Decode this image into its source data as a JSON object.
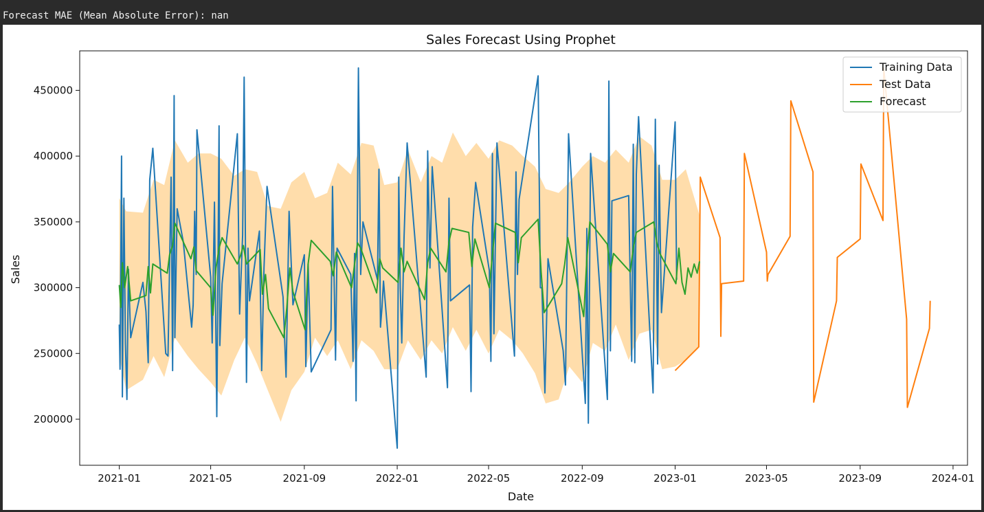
{
  "console": {
    "text": "Forecast MAE (Mean Absolute Error): nan"
  },
  "colors": {
    "training": "#1f77b4",
    "test": "#ff7f0e",
    "forecast": "#2ca02c",
    "interval": "#ffd28f"
  },
  "chart_data": {
    "type": "line",
    "title": "Sales Forecast Using Prophet",
    "xlabel": "Date",
    "ylabel": "Sales",
    "xlim": [
      "2020-11-10",
      "2024-01-20"
    ],
    "ylim": [
      165000,
      480000
    ],
    "grid": false,
    "legend_position": "top-right",
    "x_ticks": [
      "2021-01",
      "2021-05",
      "2021-09",
      "2022-01",
      "2022-05",
      "2022-09",
      "2023-01",
      "2023-05",
      "2023-09",
      "2024-01"
    ],
    "y_ticks": [
      200000,
      250000,
      300000,
      350000,
      400000,
      450000
    ],
    "y_tick_labels": [
      "200000",
      "250000",
      "300000",
      "350000",
      "400000",
      "450000"
    ],
    "series": [
      {
        "name": "Training Data",
        "x": [
          "2021-01-01",
          "2021-01-02",
          "2021-01-04",
          "2021-01-05",
          "2021-01-07",
          "2021-01-09",
          "2021-01-11",
          "2021-01-13",
          "2021-01-16",
          "2021-02-01",
          "2021-02-05",
          "2021-02-08",
          "2021-02-10",
          "2021-02-14",
          "2021-03-03",
          "2021-03-06",
          "2021-03-10",
          "2021-03-12",
          "2021-03-14",
          "2021-03-15",
          "2021-03-18",
          "2021-03-26",
          "2021-04-06",
          "2021-04-08",
          "2021-04-10",
          "2021-04-12",
          "2021-04-13",
          "2021-05-01",
          "2021-05-03",
          "2021-05-06",
          "2021-05-09",
          "2021-05-10",
          "2021-05-12",
          "2021-05-13",
          "2021-05-16",
          "2021-06-05",
          "2021-06-08",
          "2021-06-12",
          "2021-06-14",
          "2021-06-17",
          "2021-06-19",
          "2021-06-21",
          "2021-07-04",
          "2021-07-07",
          "2021-07-10",
          "2021-07-14",
          "2021-08-04",
          "2021-08-08",
          "2021-08-12",
          "2021-08-17",
          "2021-09-01",
          "2021-09-03",
          "2021-09-06",
          "2021-09-10",
          "2021-10-06",
          "2021-10-08",
          "2021-10-12",
          "2021-10-14",
          "2021-11-01",
          "2021-11-04",
          "2021-11-06",
          "2021-11-08",
          "2021-11-11",
          "2021-11-14",
          "2021-11-17",
          "2021-12-06",
          "2021-12-08",
          "2021-12-10",
          "2021-12-12",
          "2021-12-14",
          "2022-01-01",
          "2022-01-03",
          "2022-01-05",
          "2022-01-07",
          "2022-01-10",
          "2022-01-14",
          "2022-02-08",
          "2022-02-10",
          "2022-02-13",
          "2022-02-16",
          "2022-03-08",
          "2022-03-10",
          "2022-03-12",
          "2022-04-06",
          "2022-04-08",
          "2022-04-10",
          "2022-04-14",
          "2022-05-02",
          "2022-05-04",
          "2022-05-06",
          "2022-05-08",
          "2022-05-12",
          "2022-06-04",
          "2022-06-06",
          "2022-06-08",
          "2022-06-10",
          "2022-07-05",
          "2022-07-08",
          "2022-07-10",
          "2022-07-14",
          "2022-07-18",
          "2022-08-07",
          "2022-08-10",
          "2022-08-14",
          "2022-09-05",
          "2022-09-07",
          "2022-09-09",
          "2022-09-12",
          "2022-10-04",
          "2022-10-06",
          "2022-10-08",
          "2022-10-10",
          "2022-11-01",
          "2022-11-05",
          "2022-11-07",
          "2022-11-09",
          "2022-11-11",
          "2022-11-14",
          "2022-12-03",
          "2022-12-06",
          "2022-12-09",
          "2022-12-11",
          "2022-12-14",
          "2023-01-01",
          "2023-01-03"
        ],
        "values": [
          272000,
          238000,
          400000,
          217000,
          368000,
          258000,
          215000,
          314000,
          262000,
          304000,
          282000,
          243000,
          382000,
          406000,
          250000,
          248000,
          384000,
          237000,
          446000,
          262000,
          360000,
          335000,
          270000,
          287000,
          358000,
          310000,
          420000,
          308000,
          258000,
          365000,
          202000,
          272000,
          423000,
          256000,
          303000,
          417000,
          280000,
          340000,
          460000,
          228000,
          330000,
          290000,
          343000,
          237000,
          315000,
          377000,
          293000,
          232000,
          358000,
          287000,
          325000,
          240000,
          318000,
          236000,
          268000,
          377000,
          245000,
          330000,
          310000,
          244000,
          326000,
          214000,
          467000,
          310000,
          350000,
          306000,
          390000,
          270000,
          285000,
          305000,
          178000,
          384000,
          300000,
          258000,
          338000,
          410000,
          232000,
          404000,
          315000,
          392000,
          224000,
          368000,
          290000,
          302000,
          221000,
          346000,
          380000,
          313000,
          244000,
          402000,
          265000,
          410000,
          248000,
          388000,
          310000,
          367000,
          461000,
          300000,
          300000,
          220000,
          322000,
          252000,
          226000,
          417000,
          212000,
          345000,
          197000,
          402000,
          215000,
          457000,
          252000,
          366000,
          370000,
          244000,
          409000,
          243000,
          386000,
          430000,
          220000,
          428000,
          242000,
          393000,
          281000,
          426000,
          306000
        ]
      },
      {
        "name": "Test Data",
        "x": [
          "2023-01-01",
          "2023-02-01",
          "2023-02-03",
          "2023-03-01",
          "2023-03-02",
          "2023-03-03",
          "2023-04-01",
          "2023-04-02",
          "2023-05-01",
          "2023-05-02",
          "2023-05-03",
          "2023-06-01",
          "2023-06-02",
          "2023-07-01",
          "2023-07-02",
          "2023-08-01",
          "2023-08-02",
          "2023-09-01",
          "2023-09-02",
          "2023-10-01",
          "2023-10-02",
          "2023-11-01",
          "2023-11-02",
          "2023-12-01",
          "2023-12-02"
        ],
        "values": [
          237000,
          255000,
          384000,
          338000,
          263000,
          303000,
          305000,
          402000,
          327000,
          305000,
          310000,
          339000,
          442000,
          388000,
          213000,
          290000,
          323000,
          337000,
          394000,
          351000,
          467000,
          276000,
          209000,
          269000,
          290000
        ]
      },
      {
        "name": "Forecast",
        "x": [
          "2021-01-01",
          "2021-01-03",
          "2021-01-05",
          "2021-01-08",
          "2021-01-12",
          "2021-01-16",
          "2021-02-05",
          "2021-02-08",
          "2021-02-11",
          "2021-02-14",
          "2021-03-05",
          "2021-03-08",
          "2021-03-12",
          "2021-03-15",
          "2021-04-05",
          "2021-04-09",
          "2021-04-12",
          "2021-05-01",
          "2021-05-04",
          "2021-05-08",
          "2021-05-12",
          "2021-05-16",
          "2021-06-05",
          "2021-06-09",
          "2021-06-13",
          "2021-06-17",
          "2021-07-05",
          "2021-07-08",
          "2021-07-12",
          "2021-07-16",
          "2021-08-05",
          "2021-08-09",
          "2021-08-13",
          "2021-08-17",
          "2021-09-02",
          "2021-09-06",
          "2021-09-10",
          "2021-10-05",
          "2021-10-09",
          "2021-10-13",
          "2021-11-02",
          "2021-11-06",
          "2021-11-10",
          "2021-11-14",
          "2021-12-05",
          "2021-12-09",
          "2021-12-13",
          "2022-01-02",
          "2022-01-06",
          "2022-01-10",
          "2022-01-14",
          "2022-02-06",
          "2022-02-10",
          "2022-02-14",
          "2022-03-06",
          "2022-03-10",
          "2022-03-14",
          "2022-04-05",
          "2022-04-09",
          "2022-04-13",
          "2022-05-02",
          "2022-05-06",
          "2022-05-10",
          "2022-06-05",
          "2022-06-09",
          "2022-06-13",
          "2022-07-05",
          "2022-07-09",
          "2022-07-13",
          "2022-08-05",
          "2022-08-09",
          "2022-08-13",
          "2022-09-03",
          "2022-09-07",
          "2022-09-11",
          "2022-10-04",
          "2022-10-08",
          "2022-10-12",
          "2022-11-03",
          "2022-11-07",
          "2022-11-11",
          "2022-12-04",
          "2022-12-08",
          "2022-12-12",
          "2023-01-02",
          "2023-01-06",
          "2023-01-10",
          "2023-01-14",
          "2023-01-18",
          "2023-01-22",
          "2023-01-26",
          "2023-01-30",
          "2023-02-02"
        ],
        "values": [
          302000,
          285000,
          319000,
          300000,
          316000,
          290000,
          294000,
          316000,
          296000,
          318000,
          311000,
          325000,
          332000,
          349000,
          322000,
          331000,
          313000,
          300000,
          279000,
          315000,
          330000,
          338000,
          318000,
          324000,
          332000,
          318000,
          329000,
          295000,
          310000,
          284000,
          262000,
          285000,
          315000,
          297000,
          268000,
          318000,
          336000,
          320000,
          309000,
          327000,
          300000,
          318000,
          334000,
          330000,
          296000,
          322000,
          315000,
          304000,
          330000,
          312000,
          320000,
          291000,
          319000,
          330000,
          312000,
          335000,
          345000,
          342000,
          316000,
          337000,
          300000,
          325000,
          349000,
          342000,
          319000,
          338000,
          352000,
          312000,
          281000,
          303000,
          318000,
          338000,
          278000,
          322000,
          350000,
          333000,
          312000,
          326000,
          312000,
          330000,
          342000,
          350000,
          334000,
          326000,
          303000,
          330000,
          304000,
          295000,
          315000,
          308000,
          318000,
          311000,
          320000
        ]
      }
    ],
    "interval": {
      "x": [
        "2021-01-01",
        "2021-01-10",
        "2021-02-01",
        "2021-02-15",
        "2021-03-01",
        "2021-03-15",
        "2021-04-01",
        "2021-04-15",
        "2021-05-01",
        "2021-05-15",
        "2021-06-01",
        "2021-06-15",
        "2021-07-01",
        "2021-07-15",
        "2021-08-01",
        "2021-08-15",
        "2021-09-01",
        "2021-09-15",
        "2021-10-01",
        "2021-10-15",
        "2021-11-01",
        "2021-11-15",
        "2021-12-01",
        "2021-12-15",
        "2022-01-01",
        "2022-01-15",
        "2022-02-01",
        "2022-02-15",
        "2022-03-01",
        "2022-03-15",
        "2022-04-01",
        "2022-04-15",
        "2022-05-01",
        "2022-05-15",
        "2022-06-01",
        "2022-06-15",
        "2022-07-01",
        "2022-07-15",
        "2022-08-01",
        "2022-08-15",
        "2022-09-01",
        "2022-09-15",
        "2022-10-01",
        "2022-10-15",
        "2022-11-01",
        "2022-11-15",
        "2022-12-01",
        "2022-12-15",
        "2023-01-01",
        "2023-01-15",
        "2023-02-02"
      ],
      "upper": [
        368000,
        358000,
        357000,
        382000,
        378000,
        412000,
        395000,
        402000,
        402000,
        398000,
        385000,
        390000,
        388000,
        362000,
        360000,
        380000,
        388000,
        368000,
        372000,
        395000,
        386000,
        410000,
        408000,
        378000,
        380000,
        405000,
        380000,
        400000,
        395000,
        418000,
        400000,
        410000,
        398000,
        412000,
        408000,
        400000,
        392000,
        375000,
        372000,
        380000,
        392000,
        400000,
        395000,
        405000,
        395000,
        415000,
        408000,
        382000,
        382000,
        390000,
        355000
      ],
      "lower": [
        248000,
        222000,
        230000,
        248000,
        232000,
        262000,
        248000,
        238000,
        228000,
        218000,
        245000,
        262000,
        242000,
        222000,
        198000,
        222000,
        236000,
        262000,
        248000,
        260000,
        238000,
        260000,
        252000,
        238000,
        238000,
        260000,
        245000,
        260000,
        250000,
        270000,
        252000,
        268000,
        250000,
        268000,
        260000,
        250000,
        235000,
        212000,
        215000,
        240000,
        228000,
        258000,
        252000,
        272000,
        245000,
        265000,
        268000,
        238000,
        240000,
        245000,
        255000
      ]
    }
  }
}
